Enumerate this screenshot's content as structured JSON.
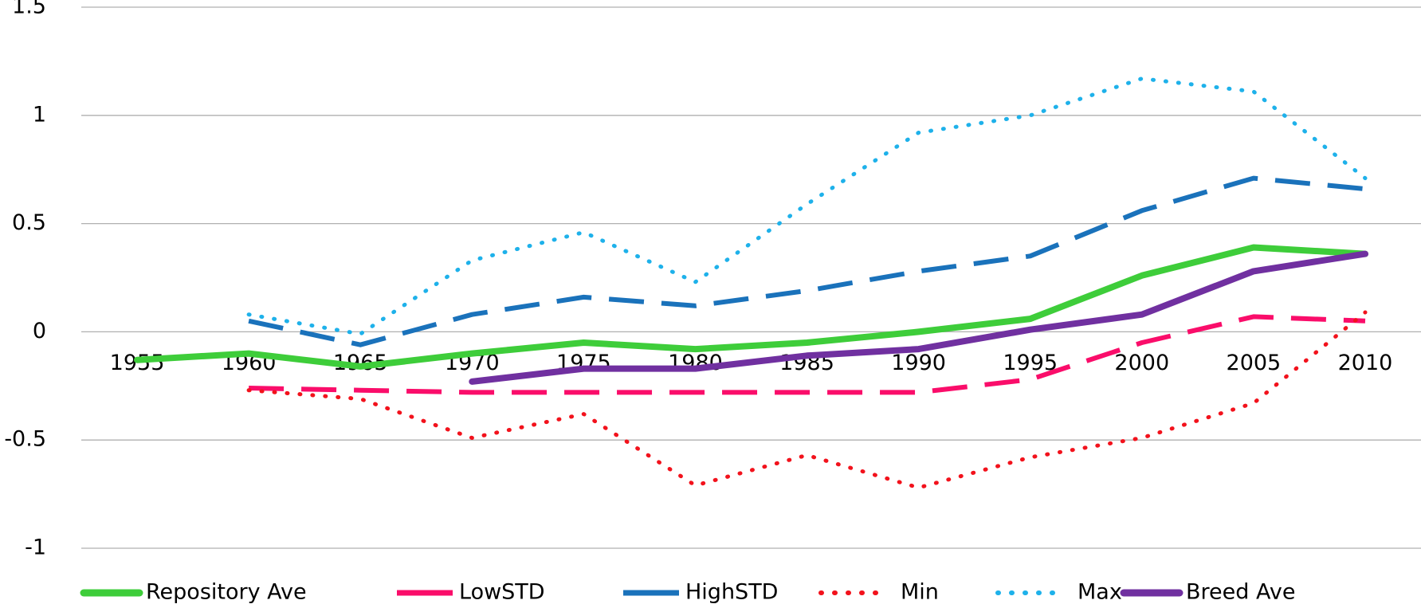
{
  "chart_data": {
    "type": "line",
    "categories": [
      "1955",
      "1960",
      "1965",
      "1970",
      "1975",
      "1980",
      "1985",
      "1990",
      "1995",
      "2000",
      "2005",
      "2010"
    ],
    "ylim": [
      -1,
      1.5
    ],
    "yticks": [
      -1,
      -0.5,
      0,
      0.5,
      1,
      1.5
    ],
    "grid": true,
    "series": [
      {
        "name": "Repository Ave",
        "color": "#3ecd3a",
        "dash": "solid",
        "values": [
          -0.13,
          -0.1,
          -0.16,
          -0.1,
          -0.05,
          -0.08,
          -0.05,
          0.0,
          0.06,
          0.26,
          0.39,
          0.36
        ]
      },
      {
        "name": "LowSTD",
        "color": "#fa0d6a",
        "dash": "dashed",
        "values": [
          null,
          -0.26,
          -0.27,
          -0.28,
          -0.28,
          -0.28,
          -0.28,
          -0.28,
          -0.22,
          -0.05,
          0.07,
          0.05
        ]
      },
      {
        "name": "HighSTD",
        "color": "#1a72bb",
        "dash": "dashed",
        "values": [
          null,
          0.05,
          -0.06,
          0.08,
          0.16,
          0.12,
          0.19,
          0.28,
          0.35,
          0.56,
          0.71,
          0.66
        ]
      },
      {
        "name": "Min",
        "color": "#f2121c",
        "dash": "dotted",
        "values": [
          null,
          -0.27,
          -0.31,
          -0.49,
          -0.38,
          -0.71,
          -0.57,
          -0.72,
          -0.58,
          -0.49,
          -0.33,
          0.09
        ]
      },
      {
        "name": "Max",
        "color": "#1eb1ea",
        "dash": "dotted",
        "values": [
          null,
          0.08,
          -0.01,
          0.33,
          0.46,
          0.23,
          0.59,
          0.92,
          1.0,
          1.17,
          1.11,
          0.71
        ]
      },
      {
        "name": "Breed Ave",
        "color": "#7030a0",
        "dash": "solid",
        "values": [
          null,
          null,
          null,
          -0.23,
          -0.17,
          -0.17,
          -0.11,
          -0.08,
          0.01,
          0.08,
          0.28,
          0.36
        ]
      }
    ]
  }
}
